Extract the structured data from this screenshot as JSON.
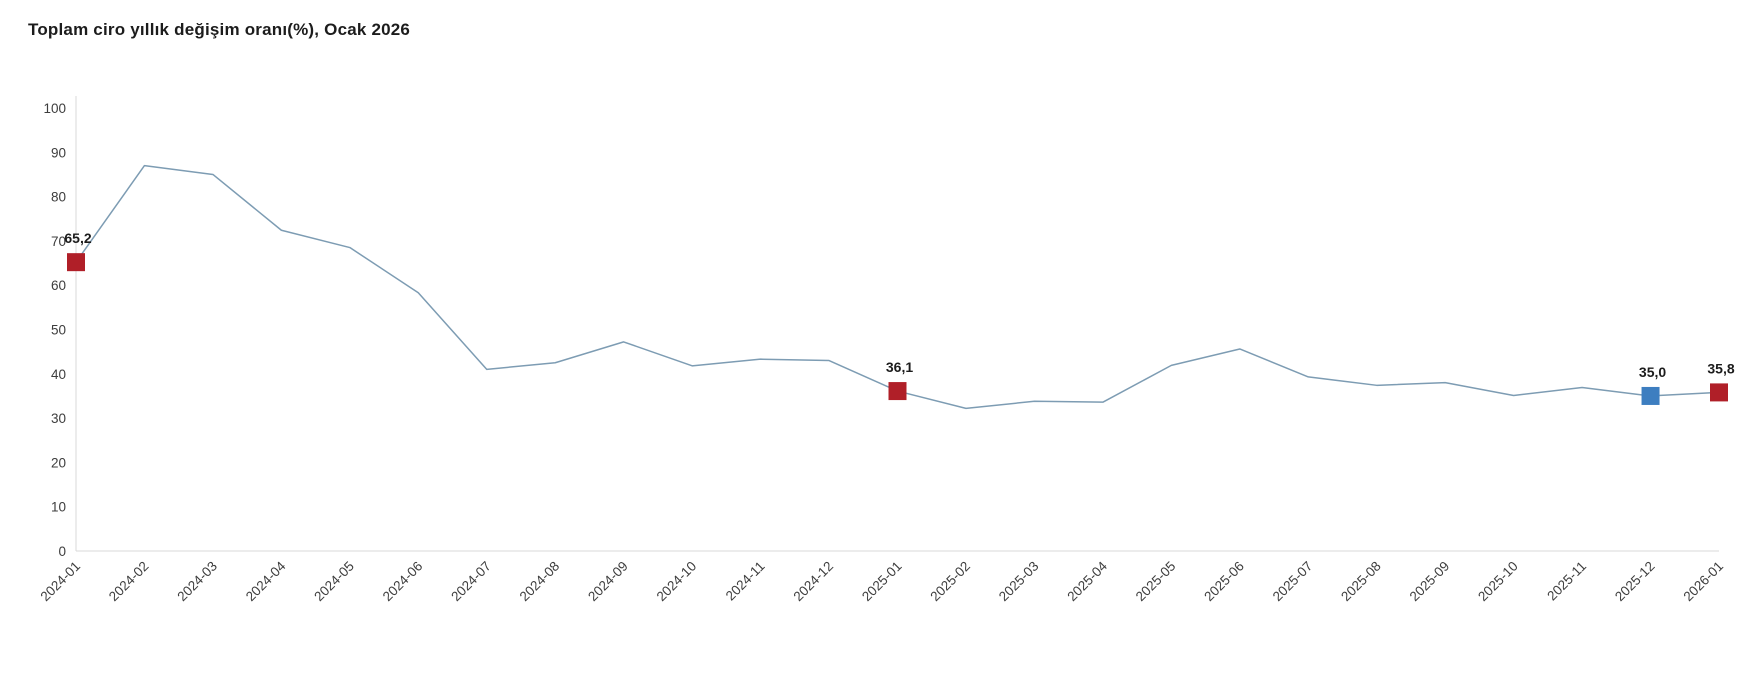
{
  "header": {
    "title": "Toplam ciro yıllık değişim oranı(%), Ocak 2026"
  },
  "chart_data": {
    "type": "line",
    "title": "Toplam ciro yıllık değişim oranı(%), Ocak 2026",
    "xlabel": "",
    "ylabel": "",
    "x": [
      "2024-01",
      "2024-02",
      "2024-03",
      "2024-04",
      "2024-05",
      "2024-06",
      "2024-07",
      "2024-08",
      "2024-09",
      "2024-10",
      "2024-11",
      "2024-12",
      "2025-01",
      "2025-02",
      "2025-03",
      "2025-04",
      "2025-05",
      "2025-06",
      "2025-07",
      "2025-08",
      "2025-09",
      "2025-10",
      "2025-11",
      "2025-12",
      "2026-01"
    ],
    "series": [
      {
        "name": "Toplam ciro yıllık değişim oranı (%)",
        "values": [
          65.2,
          87.0,
          85.0,
          72.4,
          68.5,
          58.3,
          41.0,
          42.5,
          47.2,
          41.8,
          43.3,
          43.0,
          36.1,
          32.2,
          33.8,
          33.6,
          41.9,
          45.6,
          39.3,
          37.4,
          38.0,
          35.1,
          36.9,
          35.0,
          35.8
        ]
      }
    ],
    "ylim": [
      0,
      100
    ],
    "yticks": [
      0,
      10,
      20,
      30,
      40,
      50,
      60,
      70,
      80,
      90,
      100
    ],
    "grid": false,
    "legend_position": "none",
    "line_color": "#7d9cb3",
    "axis_color": "#d9d9d9",
    "tick_label_color": "#3d3d3d",
    "annotated_points": [
      {
        "index": 0,
        "x": "2024-01",
        "value": 65.2,
        "label": "65,2",
        "marker_color": "#b01f28"
      },
      {
        "index": 12,
        "x": "2025-01",
        "value": 36.1,
        "label": "36,1",
        "marker_color": "#b01f28"
      },
      {
        "index": 23,
        "x": "2025-12",
        "value": 35.0,
        "label": "35,0",
        "marker_color": "#3d7ec0"
      },
      {
        "index": 24,
        "x": "2026-01",
        "value": 35.8,
        "label": "35,8",
        "marker_color": "#b01f28"
      }
    ]
  }
}
